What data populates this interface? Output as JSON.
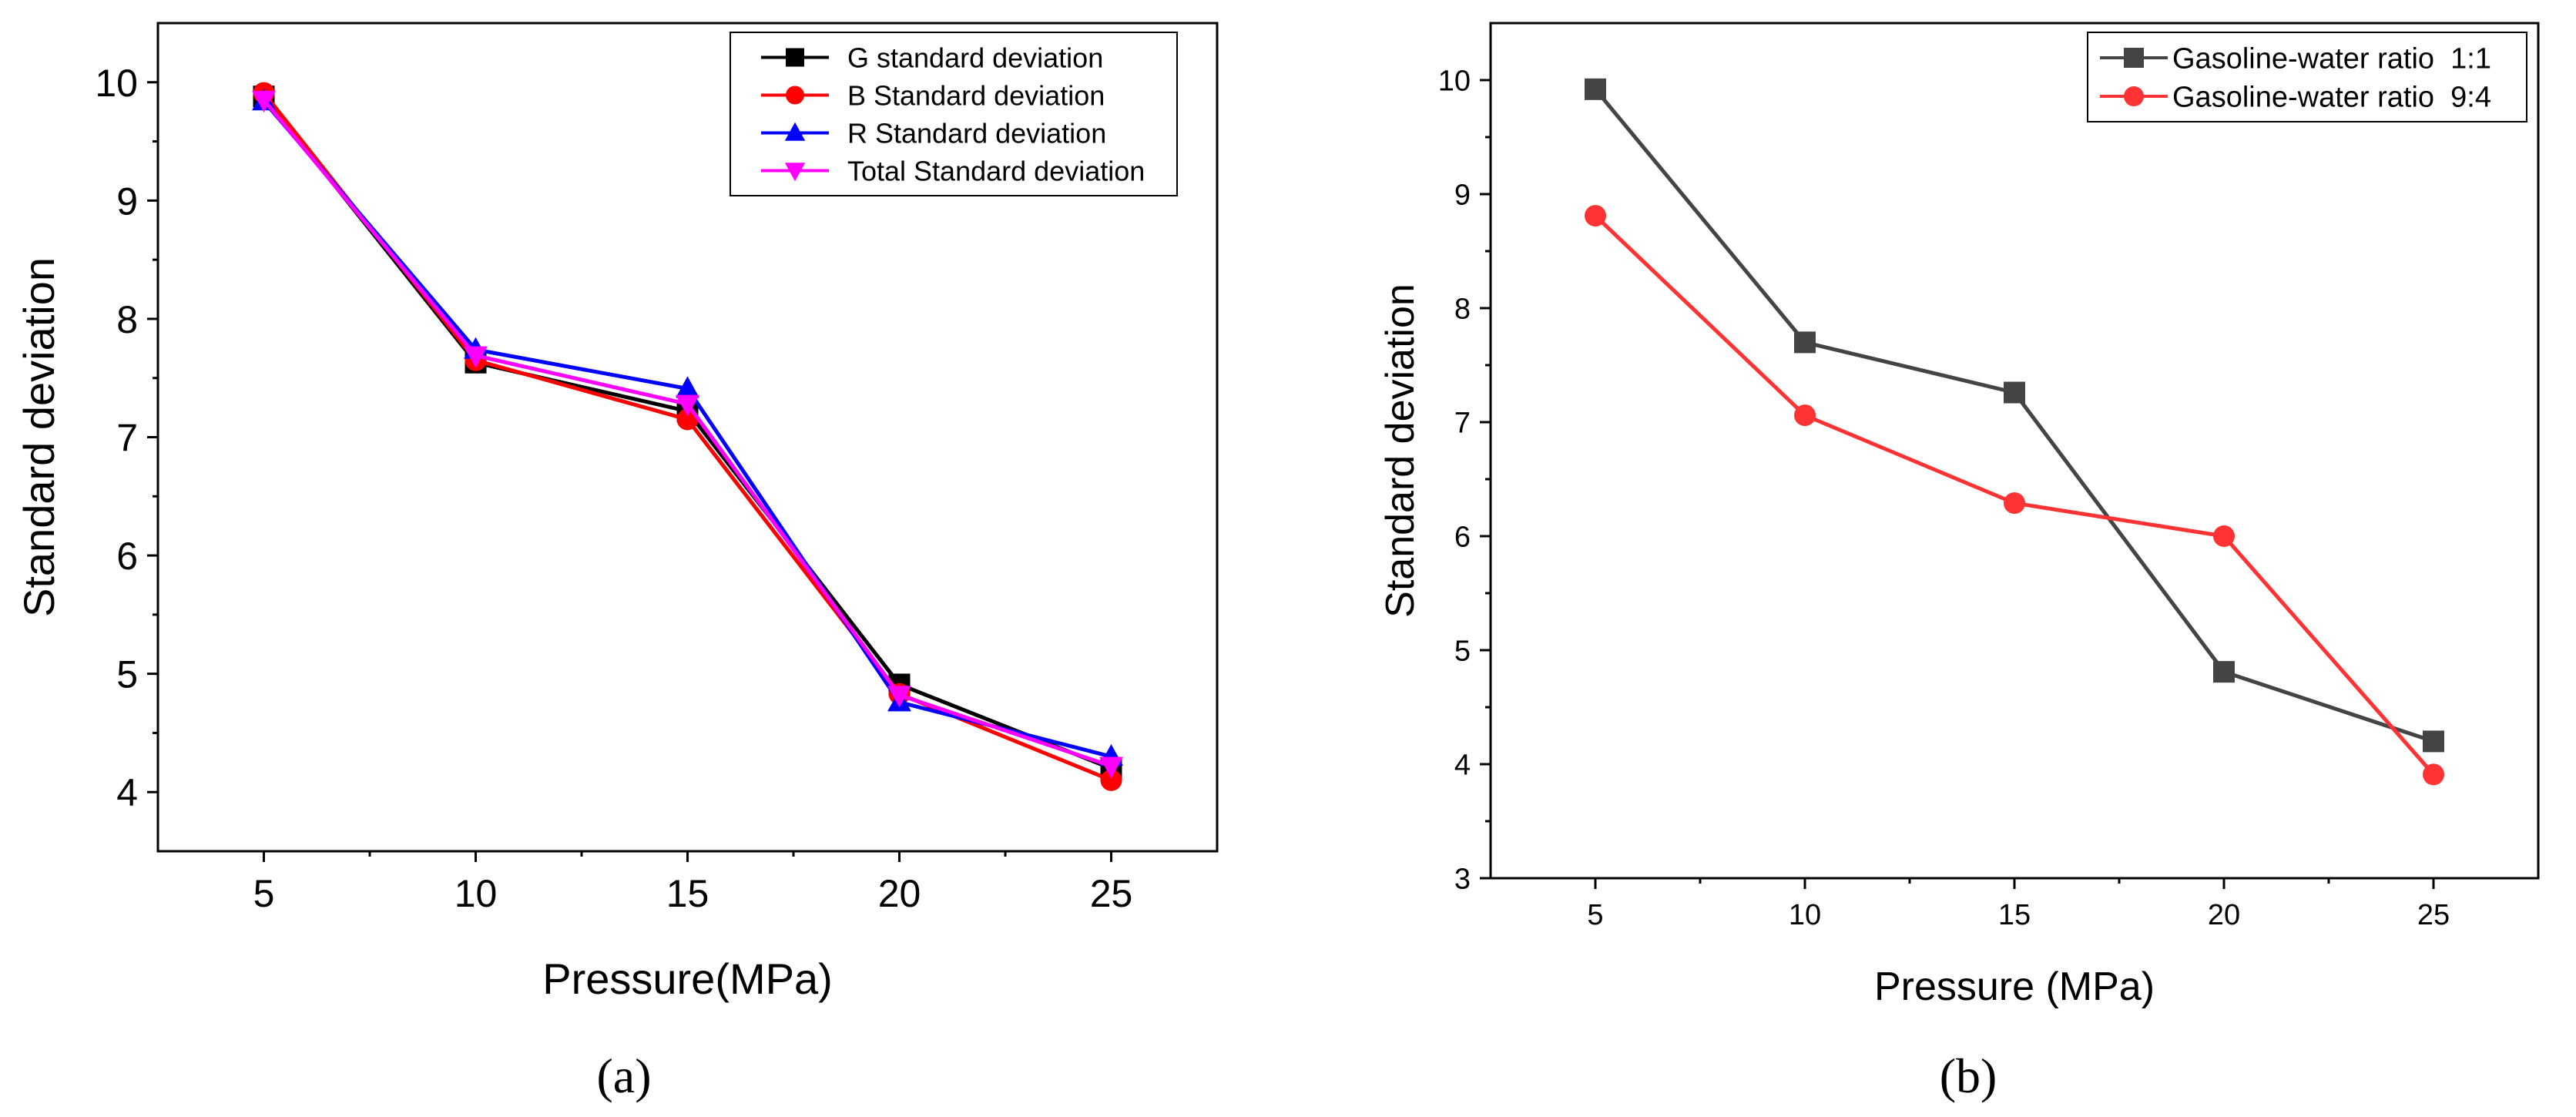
{
  "chart_data": [
    {
      "type": "line",
      "panel_label": "(a)",
      "xlabel": "Pressure(MPa)",
      "ylabel": "Standard deviation",
      "x": [
        5,
        10,
        15,
        20,
        25
      ],
      "xticks": [
        "5",
        "10",
        "15",
        "20",
        "25"
      ],
      "yticks": [
        "4",
        "5",
        "6",
        "7",
        "8",
        "9",
        "10"
      ],
      "xlim": [
        2.5,
        27.5
      ],
      "ylim": [
        3.5,
        10.5
      ],
      "legend_position": "top-right",
      "grid": false,
      "series": [
        {
          "name": "G standard deviation",
          "values": [
            9.88,
            7.63,
            7.22,
            4.91,
            4.2
          ],
          "color": "#000000",
          "marker": "square"
        },
        {
          "name": "B Standard deviation",
          "values": [
            9.91,
            7.65,
            7.15,
            4.83,
            4.1
          ],
          "color": "#ff0000",
          "marker": "circle"
        },
        {
          "name": "R Standard deviation",
          "values": [
            9.84,
            7.74,
            7.41,
            4.76,
            4.3
          ],
          "color": "#0000ff",
          "marker": "triangle-up"
        },
        {
          "name": "Total Standard deviation",
          "values": [
            9.85,
            7.69,
            7.28,
            4.82,
            4.22
          ],
          "color": "#ff00ff",
          "marker": "triangle-down"
        }
      ]
    },
    {
      "type": "line",
      "panel_label": "(b)",
      "xlabel": "Pressure (MPa)",
      "ylabel": "Standard deviation",
      "x": [
        5,
        10,
        15,
        20,
        25
      ],
      "xticks": [
        "5",
        "10",
        "15",
        "20",
        "25"
      ],
      "yticks": [
        "3",
        "4",
        "5",
        "6",
        "7",
        "8",
        "9",
        "10"
      ],
      "xlim": [
        2.5,
        27.5
      ],
      "ylim": [
        3,
        10.5
      ],
      "legend_position": "top-right",
      "grid": false,
      "series": [
        {
          "name": "Gasoline-water ratio  1:1",
          "values": [
            9.92,
            7.7,
            7.26,
            4.81,
            4.2
          ],
          "color": "#444444",
          "marker": "square"
        },
        {
          "name": "Gasoline-water ratio  9:4",
          "values": [
            8.81,
            7.06,
            6.29,
            6.0,
            3.91
          ],
          "color": "#ff3333",
          "marker": "circle"
        }
      ]
    }
  ]
}
